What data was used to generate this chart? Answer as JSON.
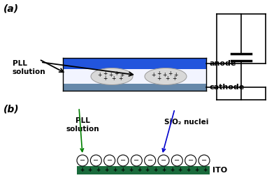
{
  "fig_width": 3.92,
  "fig_height": 2.78,
  "dpi": 100,
  "bg_color": "#ffffff",
  "panel_a_label": "(a)",
  "panel_b_label": "(b)",
  "anode_color": "#2255dd",
  "cathode_color": "#6688aa",
  "ito_color": "#1a6b3c",
  "pll_label_a": "PLL\nsolution",
  "pll_label_b": "PLL\nsolution",
  "anode_label": "anode",
  "cathode_label": "cathode",
  "ito_label": "ITO",
  "sio2_label": "SiO₂ nuclei",
  "arrow_color_b": "#008000",
  "arrow_color_sio2": "#0000cc"
}
